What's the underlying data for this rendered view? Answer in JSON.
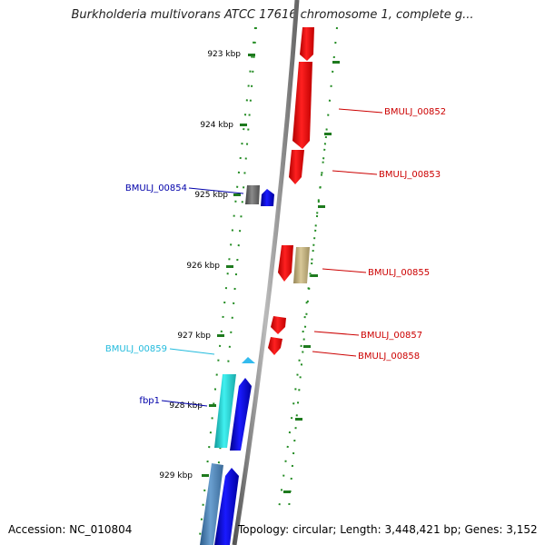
{
  "title": "Burkholderia multivorans ATCC 17616 chromosome 1, complete g...",
  "accession": "Accession: NC_010804",
  "topology": "Topology: circular; Length: 3,448,421 bp; Genes: 3,152",
  "ticks": [
    "923 kbp",
    "924 kbp",
    "925 kbp",
    "926 kbp",
    "927 kbp",
    "928 kbp",
    "929 kbp"
  ],
  "genes": [
    {
      "label": "BMULJ_00852",
      "color": "#cc0000"
    },
    {
      "label": "BMULJ_00853",
      "color": "#cc0000"
    },
    {
      "label": "BMULJ_00854",
      "color": "#0000aa"
    },
    {
      "label": "BMULJ_00855",
      "color": "#cc0000"
    },
    {
      "label": "BMULJ_00857",
      "color": "#cc0000"
    },
    {
      "label": "BMULJ_00858",
      "color": "#cc0000"
    },
    {
      "label": "BMULJ_00859",
      "color": "#22bbdd"
    },
    {
      "label": "fbp1",
      "color": "#0000aa"
    }
  ],
  "colors": {
    "red_gene": "#ff0000",
    "blue_gene": "#0000ee",
    "cyan_gene": "#22dddd",
    "steel_gene": "#4a7fb0",
    "khaki_gene": "#c2b280",
    "gray_gene": "#707070",
    "backbone": "#888888",
    "dotted_guide": "#228b22",
    "tick_mark": "#1e7a1e"
  }
}
